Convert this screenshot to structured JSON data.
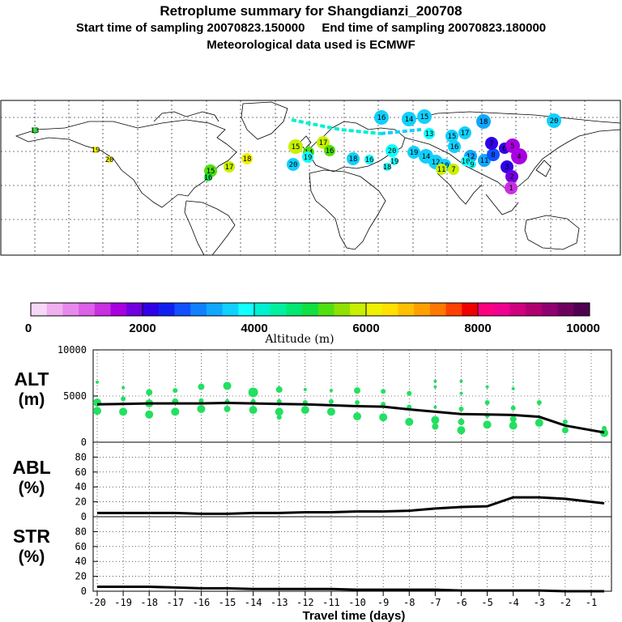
{
  "header": {
    "title": "Retroplume summary for Shangdianzi_200708",
    "line2": "Start time of sampling 20070823.150000     End time of sampling 20070823.180000",
    "line3": "Meteorological data used is ECMWF"
  },
  "colorbar": {
    "ticks": [
      "0",
      "2000",
      "4000",
      "6000",
      "8000",
      "10000"
    ],
    "title": "Altitude (m)",
    "colors": [
      "#f7d7f7",
      "#f0b0f0",
      "#e888ec",
      "#dc60e8",
      "#c830e0",
      "#a800e0",
      "#7000e0",
      "#3000e8",
      "#1020f0",
      "#1050ff",
      "#1080ff",
      "#10a8ff",
      "#10d0ff",
      "#10ffff",
      "#00f0d0",
      "#00f0a0",
      "#00e870",
      "#10e040",
      "#50e010",
      "#90e000",
      "#c8f000",
      "#f0f000",
      "#ffe000",
      "#ffc000",
      "#ffa000",
      "#ff7800",
      "#ff4000",
      "#f00000",
      "#ff0080",
      "#f00090",
      "#d00080",
      "#b00070",
      "#900070",
      "#700060",
      "#500050"
    ]
  },
  "map": {
    "labels": [
      {
        "t": "13",
        "x": 43,
        "y": 161,
        "c": "#40e040",
        "r": 4
      },
      {
        "t": "19",
        "x": 118,
        "y": 185,
        "c": "#f0f000",
        "r": 4
      },
      {
        "t": "20",
        "x": 135,
        "y": 197,
        "c": "#f0f000",
        "r": 4
      },
      {
        "t": "17",
        "x": 283,
        "y": 206,
        "c": "#c8f000",
        "r": 7
      },
      {
        "t": "18",
        "x": 305,
        "y": 196,
        "c": "#f0f000",
        "r": 7
      },
      {
        "t": "15",
        "x": 260,
        "y": 211,
        "c": "#50e010",
        "r": 8
      },
      {
        "t": "16",
        "x": 257,
        "y": 219,
        "c": "#10e040",
        "r": 5
      },
      {
        "t": "15",
        "x": 365,
        "y": 181,
        "c": "#c8f000",
        "r": 9
      },
      {
        "t": "14",
        "x": 381,
        "y": 188,
        "c": "#50e010",
        "r": 7
      },
      {
        "t": "17",
        "x": 399,
        "y": 176,
        "c": "#c8f000",
        "r": 8
      },
      {
        "t": "16",
        "x": 407,
        "y": 186,
        "c": "#50e010",
        "r": 7
      },
      {
        "t": "19",
        "x": 380,
        "y": 194,
        "c": "#10ffff",
        "r": 7
      },
      {
        "t": "20",
        "x": 362,
        "y": 203,
        "c": "#10d0ff",
        "r": 8
      },
      {
        "t": "18",
        "x": 436,
        "y": 196,
        "c": "#10d0ff",
        "r": 8
      },
      {
        "t": "16",
        "x": 456,
        "y": 197,
        "c": "#10ffff",
        "r": 6
      },
      {
        "t": "19",
        "x": 487,
        "y": 199,
        "c": "#10ffff",
        "r": 5
      },
      {
        "t": "18",
        "x": 478,
        "y": 206,
        "c": "#10ffff",
        "r": 5
      },
      {
        "t": "20",
        "x": 484,
        "y": 186,
        "c": "#10ffff",
        "r": 8
      },
      {
        "t": "19",
        "x": 511,
        "y": 188,
        "c": "#10d0ff",
        "r": 8
      },
      {
        "t": "14",
        "x": 526,
        "y": 193,
        "c": "#10d0ff",
        "r": 9
      },
      {
        "t": "12",
        "x": 538,
        "y": 200,
        "c": "#10d0ff",
        "r": 9
      },
      {
        "t": "10",
        "x": 549,
        "y": 204,
        "c": "#10d0ff",
        "r": 8
      },
      {
        "t": "11",
        "x": 545,
        "y": 209,
        "c": "#c8f000",
        "r": 7
      },
      {
        "t": "7",
        "x": 560,
        "y": 209,
        "c": "#c8f000",
        "r": 7
      },
      {
        "t": "16",
        "x": 471,
        "y": 145,
        "c": "#10d0ff",
        "r": 9
      },
      {
        "t": "14",
        "x": 505,
        "y": 147,
        "c": "#10d0ff",
        "r": 9
      },
      {
        "t": "15",
        "x": 524,
        "y": 144,
        "c": "#10d0ff",
        "r": 9
      },
      {
        "t": "18",
        "x": 597,
        "y": 150,
        "c": "#10a8ff",
        "r": 9
      },
      {
        "t": "20",
        "x": 684,
        "y": 149,
        "c": "#10d0ff",
        "r": 9
      },
      {
        "t": "17",
        "x": 574,
        "y": 164,
        "c": "#10d0ff",
        "r": 8
      },
      {
        "t": "15",
        "x": 558,
        "y": 168,
        "c": "#10d0ff",
        "r": 8
      },
      {
        "t": "13",
        "x": 530,
        "y": 165,
        "c": "#10ffff",
        "r": 7
      },
      {
        "t": "16",
        "x": 561,
        "y": 181,
        "c": "#10d0ff",
        "r": 8
      },
      {
        "t": "12",
        "x": 581,
        "y": 193,
        "c": "#10a8ff",
        "r": 8
      },
      {
        "t": "10",
        "x": 575,
        "y": 199,
        "c": "#10ffff",
        "r": 6
      },
      {
        "t": "9",
        "x": 583,
        "y": 203,
        "c": "#10ffff",
        "r": 5
      },
      {
        "t": "11",
        "x": 598,
        "y": 198,
        "c": "#10a8ff",
        "r": 8
      },
      {
        "t": "8",
        "x": 609,
        "y": 191,
        "c": "#1050ff",
        "r": 8
      },
      {
        "t": "7",
        "x": 607,
        "y": 177,
        "c": "#3000e8",
        "r": 8
      },
      {
        "t": "6",
        "x": 623,
        "y": 183,
        "c": "#3000e8",
        "r": 7
      },
      {
        "t": "5",
        "x": 633,
        "y": 180,
        "c": "#a800e0",
        "r": 9
      },
      {
        "t": "4",
        "x": 641,
        "y": 193,
        "c": "#a800e0",
        "r": 10
      },
      {
        "t": "3",
        "x": 626,
        "y": 206,
        "c": "#3000e8",
        "r": 8
      },
      {
        "t": "2",
        "x": 632,
        "y": 218,
        "c": "#7000e0",
        "r": 8
      },
      {
        "t": "1",
        "x": 631,
        "y": 232,
        "c": "#c830e0",
        "r": 8
      }
    ],
    "tracks": [
      {
        "pts": [
          [
            360,
            148
          ],
          [
            420,
            160
          ],
          [
            470,
            165
          ]
        ],
        "c": "#00f0d0"
      },
      {
        "pts": [
          [
            470,
            165
          ],
          [
            520,
            160
          ]
        ],
        "c": "#10d0ff"
      }
    ]
  },
  "panels": {
    "alt": {
      "label1": "ALT",
      "label2": "(m)",
      "ymax": 10000,
      "yticks": [
        "0",
        "5000",
        "10000"
      ]
    },
    "abl": {
      "label1": "ABL",
      "label2": "(%)",
      "ymax": 100,
      "yticks": [
        "0",
        "20",
        "40",
        "60",
        "80"
      ]
    },
    "str": {
      "label1": "STR",
      "label2": "(%)",
      "ymax": 100,
      "yticks": [
        "0",
        "20",
        "40",
        "60",
        "80"
      ]
    }
  },
  "chart_data": [
    {
      "type": "line",
      "title": "ALT (m)",
      "xlabel": "Travel time (days)",
      "ylabel": "ALT (m)",
      "ylim": [
        0,
        10000
      ],
      "x": [
        -20,
        -19,
        -18,
        -17,
        -16,
        -15,
        -14,
        -13,
        -12,
        -11,
        -10,
        -9,
        -8,
        -7,
        -6,
        -5,
        -4,
        -3,
        -2,
        -1,
        -0.5
      ],
      "values": [
        4100,
        4150,
        4200,
        4200,
        4200,
        4250,
        4200,
        4150,
        4100,
        4000,
        3900,
        3850,
        3550,
        3300,
        3050,
        3000,
        2950,
        2750,
        1800,
        1300,
        1050
      ],
      "scatter": [
        {
          "x": -20,
          "y": 6500,
          "r": 2
        },
        {
          "x": -20,
          "y": 4300,
          "r": 5
        },
        {
          "x": -20,
          "y": 3400,
          "r": 5
        },
        {
          "x": -19,
          "y": 5900,
          "r": 2
        },
        {
          "x": -19,
          "y": 4700,
          "r": 3
        },
        {
          "x": -19,
          "y": 3300,
          "r": 5
        },
        {
          "x": -18,
          "y": 5400,
          "r": 4
        },
        {
          "x": -18,
          "y": 4200,
          "r": 5
        },
        {
          "x": -18,
          "y": 3000,
          "r": 5
        },
        {
          "x": -17,
          "y": 5600,
          "r": 3
        },
        {
          "x": -17,
          "y": 4400,
          "r": 4
        },
        {
          "x": -17,
          "y": 3300,
          "r": 5
        },
        {
          "x": -16,
          "y": 6000,
          "r": 4
        },
        {
          "x": -16,
          "y": 4500,
          "r": 3
        },
        {
          "x": -16,
          "y": 3600,
          "r": 5
        },
        {
          "x": -15,
          "y": 6100,
          "r": 5
        },
        {
          "x": -15,
          "y": 4400,
          "r": 3
        },
        {
          "x": -15,
          "y": 3600,
          "r": 4
        },
        {
          "x": -14,
          "y": 5400,
          "r": 6
        },
        {
          "x": -14,
          "y": 4400,
          "r": 3
        },
        {
          "x": -14,
          "y": 3500,
          "r": 5
        },
        {
          "x": -13,
          "y": 5700,
          "r": 4
        },
        {
          "x": -13,
          "y": 4400,
          "r": 3
        },
        {
          "x": -13,
          "y": 3300,
          "r": 5
        },
        {
          "x": -13,
          "y": 2700,
          "r": 3
        },
        {
          "x": -12,
          "y": 5700,
          "r": 2
        },
        {
          "x": -12,
          "y": 4300,
          "r": 3
        },
        {
          "x": -12,
          "y": 3500,
          "r": 5
        },
        {
          "x": -11,
          "y": 5600,
          "r": 2
        },
        {
          "x": -11,
          "y": 4400,
          "r": 3
        },
        {
          "x": -11,
          "y": 3300,
          "r": 5
        },
        {
          "x": -10,
          "y": 5600,
          "r": 4
        },
        {
          "x": -10,
          "y": 4300,
          "r": 3
        },
        {
          "x": -10,
          "y": 2800,
          "r": 5
        },
        {
          "x": -9,
          "y": 5500,
          "r": 3
        },
        {
          "x": -9,
          "y": 4100,
          "r": 3
        },
        {
          "x": -9,
          "y": 2700,
          "r": 5
        },
        {
          "x": -8,
          "y": 5300,
          "r": 3
        },
        {
          "x": -8,
          "y": 3800,
          "r": 3
        },
        {
          "x": -8,
          "y": 2200,
          "r": 5
        },
        {
          "x": -7,
          "y": 6600,
          "r": 2
        },
        {
          "x": -7,
          "y": 6000,
          "r": 2
        },
        {
          "x": -7,
          "y": 3800,
          "r": 2
        },
        {
          "x": -7,
          "y": 2400,
          "r": 5
        },
        {
          "x": -7,
          "y": 1700,
          "r": 4
        },
        {
          "x": -6,
          "y": 6600,
          "r": 2
        },
        {
          "x": -6,
          "y": 5300,
          "r": 2
        },
        {
          "x": -6,
          "y": 3600,
          "r": 3
        },
        {
          "x": -6,
          "y": 2200,
          "r": 4
        },
        {
          "x": -6,
          "y": 1300,
          "r": 5
        },
        {
          "x": -5,
          "y": 6000,
          "r": 2
        },
        {
          "x": -5,
          "y": 4300,
          "r": 3
        },
        {
          "x": -5,
          "y": 2900,
          "r": 3
        },
        {
          "x": -5,
          "y": 1900,
          "r": 5
        },
        {
          "x": -4,
          "y": 6500,
          "r": 1
        },
        {
          "x": -4,
          "y": 5800,
          "r": 2
        },
        {
          "x": -4,
          "y": 3700,
          "r": 3
        },
        {
          "x": -4,
          "y": 2500,
          "r": 4
        },
        {
          "x": -4,
          "y": 1800,
          "r": 5
        },
        {
          "x": -3,
          "y": 4300,
          "r": 3
        },
        {
          "x": -3,
          "y": 2100,
          "r": 5
        },
        {
          "x": -2,
          "y": 2200,
          "r": 3
        },
        {
          "x": -2,
          "y": 1300,
          "r": 4
        },
        {
          "x": -0.5,
          "y": 1500,
          "r": 3
        },
        {
          "x": -0.5,
          "y": 1000,
          "r": 5
        }
      ]
    },
    {
      "type": "line",
      "title": "ABL (%)",
      "xlabel": "Travel time (days)",
      "ylabel": "ABL (%)",
      "ylim": [
        0,
        100
      ],
      "x": [
        -20,
        -19,
        -18,
        -17,
        -16,
        -15,
        -14,
        -13,
        -12,
        -11,
        -10,
        -9,
        -8,
        -7,
        -6,
        -5,
        -4,
        -3,
        -2,
        -1,
        -0.5
      ],
      "values": [
        5,
        5,
        5,
        5,
        4,
        4,
        5,
        5,
        6,
        6,
        7,
        7,
        8,
        11,
        13,
        14,
        26,
        26,
        24,
        20,
        18
      ]
    },
    {
      "type": "line",
      "title": "STR (%)",
      "xlabel": "Travel time (days)",
      "ylabel": "STR (%)",
      "ylim": [
        0,
        100
      ],
      "x": [
        -20,
        -19,
        -18,
        -17,
        -16,
        -15,
        -14,
        -13,
        -12,
        -11,
        -10,
        -9,
        -8,
        -7,
        -6,
        -5,
        -4,
        -3,
        -2,
        -1,
        -0.5
      ],
      "values": [
        6,
        6,
        6,
        5,
        4,
        4,
        3,
        3,
        3,
        3,
        2,
        2,
        2,
        2,
        1,
        1,
        1,
        1,
        0,
        0,
        0
      ]
    }
  ],
  "xaxis": {
    "ticks": [
      "-20",
      "-19",
      "-18",
      "-17",
      "-16",
      "-15",
      "-14",
      "-13",
      "-12",
      "-11",
      "-10",
      "-9",
      "-8",
      "-7",
      "-6",
      "-5",
      "-4",
      "-3",
      "-2",
      "-1"
    ],
    "label": "Travel time (days)"
  }
}
